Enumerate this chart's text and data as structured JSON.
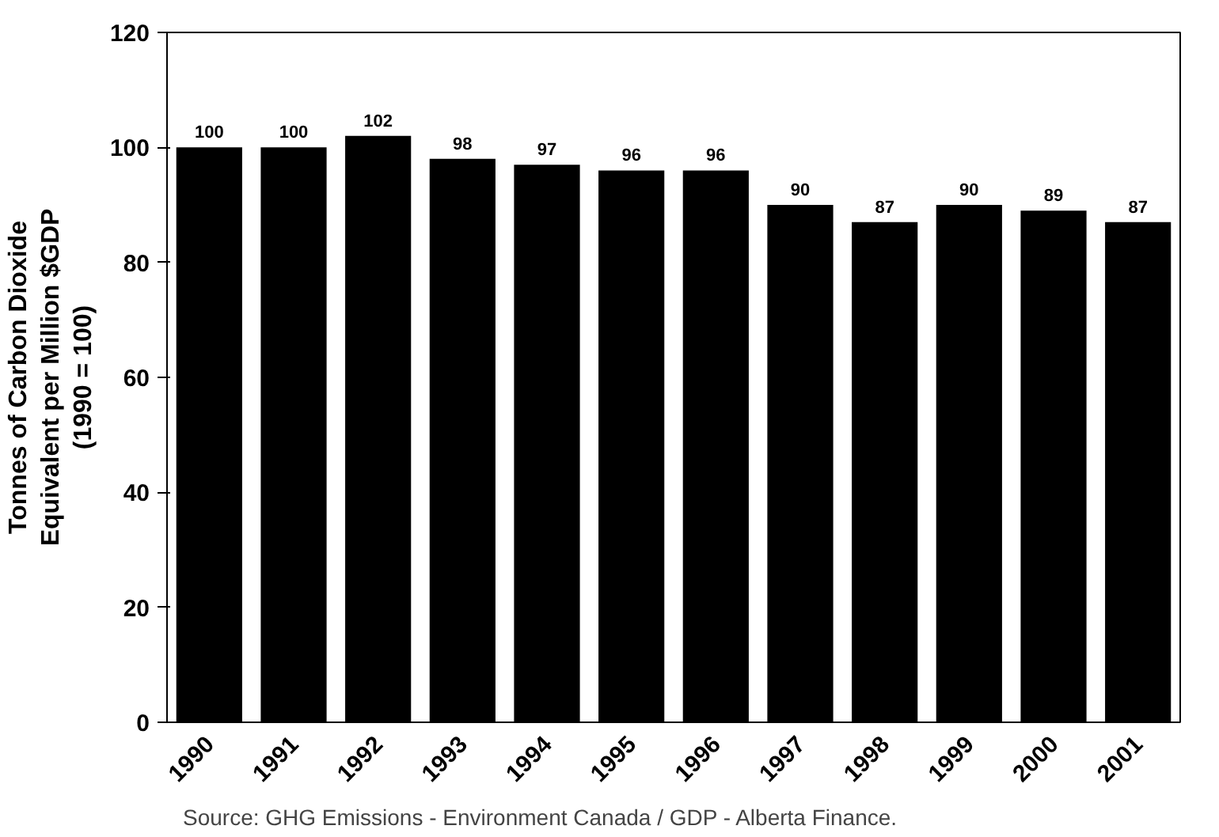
{
  "chart_data": {
    "type": "bar",
    "ylabel": "Tonnes of Carbon Dioxide\nEquivalent per Million $GDP\n(1990 = 100)",
    "categories": [
      "1990",
      "1991",
      "1992",
      "1993",
      "1994",
      "1995",
      "1996",
      "1997",
      "1998",
      "1999",
      "2000",
      "2001"
    ],
    "values": [
      100,
      100,
      102,
      98,
      97,
      96,
      96,
      90,
      87,
      90,
      89,
      87
    ],
    "color": "#000000",
    "ylim": [
      0,
      120
    ],
    "yticks": [
      0,
      20,
      40,
      60,
      80,
      100,
      120
    ],
    "grid": false,
    "data_labels": true,
    "annotations": [
      "Source:  GHG Emissions - Environment Canada / GDP - Alberta Finance."
    ]
  }
}
